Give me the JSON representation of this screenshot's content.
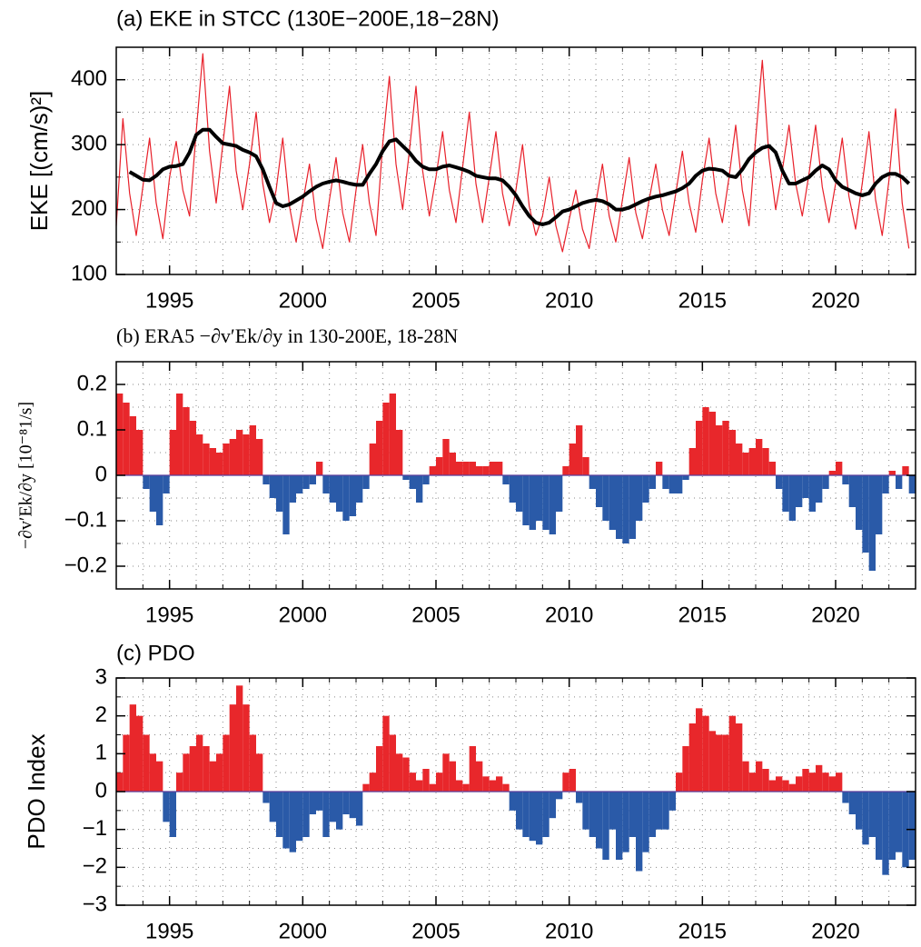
{
  "chart_data": [
    {
      "type": "line",
      "title": "(a) EKE in STCC (130E−200E,18−28N)",
      "ylabel": "EKE [(cm/s)²]",
      "xlim": [
        1993,
        2023
      ],
      "xticks": [
        1995,
        2000,
        2005,
        2010,
        2015,
        2020
      ],
      "xminorticks": [
        1993,
        1994,
        1995,
        1996,
        1997,
        1998,
        1999,
        2000,
        2001,
        2002,
        2003,
        2004,
        2005,
        2006,
        2007,
        2008,
        2009,
        2010,
        2011,
        2012,
        2013,
        2014,
        2015,
        2016,
        2017,
        2018,
        2019,
        2020,
        2021,
        2022,
        2023
      ],
      "ylim": [
        100,
        450
      ],
      "yticks": [
        100,
        200,
        300,
        400
      ],
      "yminorticks": [
        100,
        150,
        200,
        250,
        300,
        350,
        400,
        450
      ],
      "grid": true,
      "x": [
        1993,
        1993.25,
        1993.5,
        1993.75,
        1994,
        1994.25,
        1994.5,
        1994.75,
        1995,
        1995.25,
        1995.5,
        1995.75,
        1996,
        1996.25,
        1996.5,
        1996.75,
        1997,
        1997.25,
        1997.5,
        1997.75,
        1998,
        1998.25,
        1998.5,
        1998.75,
        1999,
        1999.25,
        1999.5,
        1999.75,
        2000,
        2000.25,
        2000.5,
        2000.75,
        2001,
        2001.25,
        2001.5,
        2001.75,
        2002,
        2002.25,
        2002.5,
        2002.75,
        2003,
        2003.25,
        2003.5,
        2003.75,
        2004,
        2004.25,
        2004.5,
        2004.75,
        2005,
        2005.25,
        2005.5,
        2005.75,
        2006,
        2006.25,
        2006.5,
        2006.75,
        2007,
        2007.25,
        2007.5,
        2007.75,
        2008,
        2008.25,
        2008.5,
        2008.75,
        2009,
        2009.25,
        2009.5,
        2009.75,
        2010,
        2010.25,
        2010.5,
        2010.75,
        2011,
        2011.25,
        2011.5,
        2011.75,
        2012,
        2012.25,
        2012.5,
        2012.75,
        2013,
        2013.25,
        2013.5,
        2013.75,
        2014,
        2014.25,
        2014.5,
        2014.75,
        2015,
        2015.25,
        2015.5,
        2015.75,
        2016,
        2016.25,
        2016.5,
        2016.75,
        2017,
        2017.25,
        2017.5,
        2017.75,
        2018,
        2018.25,
        2018.5,
        2018.75,
        2019,
        2019.25,
        2019.5,
        2019.75,
        2020,
        2020.25,
        2020.5,
        2020.75,
        2021,
        2021.25,
        2021.5,
        2021.75,
        2022,
        2022.25,
        2022.5,
        2022.75
      ],
      "series": [
        {
          "color": "#e8202a",
          "width": 1.2,
          "values": [
            175,
            340,
            225,
            160,
            235,
            310,
            210,
            155,
            250,
            305,
            230,
            190,
            320,
            440,
            290,
            210,
            300,
            390,
            260,
            200,
            270,
            350,
            240,
            180,
            230,
            310,
            205,
            150,
            210,
            270,
            185,
            140,
            215,
            280,
            195,
            150,
            230,
            300,
            210,
            160,
            300,
            405,
            270,
            200,
            290,
            390,
            260,
            190,
            250,
            320,
            230,
            180,
            265,
            350,
            240,
            180,
            250,
            320,
            225,
            175,
            230,
            300,
            205,
            160,
            190,
            250,
            175,
            135,
            185,
            230,
            170,
            140,
            210,
            270,
            190,
            150,
            215,
            280,
            195,
            155,
            215,
            270,
            200,
            160,
            225,
            290,
            210,
            165,
            245,
            310,
            225,
            180,
            250,
            330,
            230,
            175,
            310,
            430,
            280,
            200,
            260,
            330,
            240,
            190,
            255,
            330,
            235,
            180,
            240,
            310,
            220,
            170,
            240,
            320,
            215,
            160,
            245,
            355,
            210,
            140
          ]
        },
        {
          "color": "#000000",
          "width": 4,
          "values": [
            null,
            null,
            258,
            252,
            246,
            245,
            252,
            262,
            266,
            267,
            270,
            288,
            315,
            323,
            323,
            312,
            302,
            300,
            298,
            292,
            288,
            282,
            262,
            235,
            210,
            205,
            208,
            214,
            220,
            228,
            235,
            240,
            243,
            245,
            243,
            240,
            238,
            238,
            255,
            270,
            290,
            305,
            308,
            298,
            288,
            275,
            266,
            262,
            262,
            266,
            268,
            265,
            262,
            258,
            252,
            250,
            248,
            248,
            245,
            235,
            222,
            205,
            190,
            180,
            177,
            180,
            188,
            197,
            200,
            205,
            210,
            213,
            215,
            213,
            208,
            200,
            200,
            203,
            208,
            213,
            217,
            220,
            222,
            225,
            228,
            233,
            240,
            252,
            260,
            263,
            262,
            260,
            252,
            250,
            262,
            278,
            288,
            295,
            298,
            288,
            260,
            240,
            240,
            245,
            250,
            260,
            268,
            262,
            245,
            235,
            230,
            225,
            222,
            225,
            240,
            250,
            255,
            255,
            250,
            240
          ]
        }
      ]
    },
    {
      "type": "bar",
      "title": "(b) ERA5 −∂v′Ek/∂y in 130-200E, 18-28N",
      "ylabel": "−∂v′Ek/∂y [10⁻⁸1/s]",
      "xlim": [
        1993,
        2023
      ],
      "xticks": [
        1995,
        2000,
        2005,
        2010,
        2015,
        2020
      ],
      "xminorticks": [
        1993,
        1994,
        1995,
        1996,
        1997,
        1998,
        1999,
        2000,
        2001,
        2002,
        2003,
        2004,
        2005,
        2006,
        2007,
        2008,
        2009,
        2010,
        2011,
        2012,
        2013,
        2014,
        2015,
        2016,
        2017,
        2018,
        2019,
        2020,
        2021,
        2022,
        2023
      ],
      "ylim": [
        -0.25,
        0.25
      ],
      "yticks": [
        {
          "value": -0.2,
          "label": "−0.2"
        },
        {
          "value": -0.1,
          "label": "−0.1"
        },
        0,
        0.1,
        0.2
      ],
      "yminorticks": [
        -0.25,
        -0.2,
        -0.15,
        -0.1,
        -0.05,
        0,
        0.05,
        0.1,
        0.15,
        0.2,
        0.25
      ],
      "grid": true,
      "pos_color": "#e8272b",
      "neg_color": "#2a5aa8",
      "x": [
        1993,
        1993.25,
        1993.5,
        1993.75,
        1994,
        1994.25,
        1994.5,
        1994.75,
        1995,
        1995.25,
        1995.5,
        1995.75,
        1996,
        1996.25,
        1996.5,
        1996.75,
        1997,
        1997.25,
        1997.5,
        1997.75,
        1998,
        1998.25,
        1998.5,
        1998.75,
        1999,
        1999.25,
        1999.5,
        1999.75,
        2000,
        2000.25,
        2000.5,
        2000.75,
        2001,
        2001.25,
        2001.5,
        2001.75,
        2002,
        2002.25,
        2002.5,
        2002.75,
        2003,
        2003.25,
        2003.5,
        2003.75,
        2004,
        2004.25,
        2004.5,
        2004.75,
        2005,
        2005.25,
        2005.5,
        2005.75,
        2006,
        2006.25,
        2006.5,
        2006.75,
        2007,
        2007.25,
        2007.5,
        2007.75,
        2008,
        2008.25,
        2008.5,
        2008.75,
        2009,
        2009.25,
        2009.5,
        2009.75,
        2010,
        2010.25,
        2010.5,
        2010.75,
        2011,
        2011.25,
        2011.5,
        2011.75,
        2012,
        2012.25,
        2012.5,
        2012.75,
        2013,
        2013.25,
        2013.5,
        2013.75,
        2014,
        2014.25,
        2014.5,
        2014.75,
        2015,
        2015.25,
        2015.5,
        2015.75,
        2016,
        2016.25,
        2016.5,
        2016.75,
        2017,
        2017.25,
        2017.5,
        2017.75,
        2018,
        2018.25,
        2018.5,
        2018.75,
        2019,
        2019.25,
        2019.5,
        2019.75,
        2020,
        2020.25,
        2020.5,
        2020.75,
        2021,
        2021.25,
        2021.5,
        2021.75,
        2022,
        2022.25,
        2022.5,
        2022.75
      ],
      "values": [
        0.18,
        0.16,
        0.13,
        0.1,
        -0.03,
        -0.08,
        -0.11,
        -0.04,
        0.1,
        0.18,
        0.15,
        0.12,
        0.09,
        0.07,
        0.06,
        0.05,
        0.07,
        0.08,
        0.1,
        0.09,
        0.11,
        0.08,
        -0.02,
        -0.05,
        -0.08,
        -0.13,
        -0.06,
        -0.04,
        -0.03,
        -0.02,
        0.03,
        -0.04,
        -0.06,
        -0.08,
        -0.1,
        -0.09,
        -0.06,
        -0.03,
        0.07,
        0.12,
        0.16,
        0.18,
        0.1,
        -0.01,
        -0.03,
        -0.06,
        -0.02,
        0.02,
        0.04,
        0.08,
        0.05,
        0.03,
        0.03,
        0.03,
        0.02,
        0.02,
        0.03,
        0.03,
        -0.02,
        -0.06,
        -0.08,
        -0.11,
        -0.12,
        -0.1,
        -0.12,
        -0.13,
        -0.08,
        0.02,
        0.07,
        0.11,
        0.04,
        -0.03,
        -0.07,
        -0.1,
        -0.12,
        -0.14,
        -0.15,
        -0.14,
        -0.1,
        -0.06,
        -0.03,
        0.03,
        -0.03,
        -0.04,
        -0.04,
        -0.01,
        0.06,
        0.12,
        0.15,
        0.14,
        0.11,
        0.12,
        0.1,
        0.07,
        0.05,
        0.06,
        0.08,
        0.06,
        0.03,
        -0.03,
        -0.08,
        -0.1,
        -0.07,
        -0.05,
        -0.08,
        -0.06,
        -0.03,
        0.01,
        0.03,
        -0.02,
        -0.07,
        -0.12,
        -0.17,
        -0.21,
        -0.13,
        -0.04,
        0.01,
        -0.03,
        0.02,
        -0.04
      ]
    },
    {
      "type": "bar",
      "title": "(c) PDO",
      "ylabel": "PDO Index",
      "xlim": [
        1993,
        2023
      ],
      "xticks": [
        1995,
        2000,
        2005,
        2010,
        2015,
        2020
      ],
      "xminorticks": [
        1993,
        1994,
        1995,
        1996,
        1997,
        1998,
        1999,
        2000,
        2001,
        2002,
        2003,
        2004,
        2005,
        2006,
        2007,
        2008,
        2009,
        2010,
        2011,
        2012,
        2013,
        2014,
        2015,
        2016,
        2017,
        2018,
        2019,
        2020,
        2021,
        2022,
        2023
      ],
      "ylim": [
        -3,
        3
      ],
      "yticks": [
        {
          "value": -3,
          "label": "−3"
        },
        {
          "value": -2,
          "label": "−2"
        },
        {
          "value": -1,
          "label": "−1"
        },
        0,
        1,
        2,
        3
      ],
      "yminorticks": [
        -3,
        -2.5,
        -2,
        -1.5,
        -1,
        -0.5,
        0,
        0.5,
        1,
        1.5,
        2,
        2.5,
        3
      ],
      "grid": true,
      "pos_color": "#e8272b",
      "neg_color": "#2a5aa8",
      "x": [
        1993,
        1993.25,
        1993.5,
        1993.75,
        1994,
        1994.25,
        1994.5,
        1994.75,
        1995,
        1995.25,
        1995.5,
        1995.75,
        1996,
        1996.25,
        1996.5,
        1996.75,
        1997,
        1997.25,
        1997.5,
        1997.75,
        1998,
        1998.25,
        1998.5,
        1998.75,
        1999,
        1999.25,
        1999.5,
        1999.75,
        2000,
        2000.25,
        2000.5,
        2000.75,
        2001,
        2001.25,
        2001.5,
        2001.75,
        2002,
        2002.25,
        2002.5,
        2002.75,
        2003,
        2003.25,
        2003.5,
        2003.75,
        2004,
        2004.25,
        2004.5,
        2004.75,
        2005,
        2005.25,
        2005.5,
        2005.75,
        2006,
        2006.25,
        2006.5,
        2006.75,
        2007,
        2007.25,
        2007.5,
        2007.75,
        2008,
        2008.25,
        2008.5,
        2008.75,
        2009,
        2009.25,
        2009.5,
        2009.75,
        2010,
        2010.25,
        2010.5,
        2010.75,
        2011,
        2011.25,
        2011.5,
        2011.75,
        2012,
        2012.25,
        2012.5,
        2012.75,
        2013,
        2013.25,
        2013.5,
        2013.75,
        2014,
        2014.25,
        2014.5,
        2014.75,
        2015,
        2015.25,
        2015.5,
        2015.75,
        2016,
        2016.25,
        2016.5,
        2016.75,
        2017,
        2017.25,
        2017.5,
        2017.75,
        2018,
        2018.25,
        2018.5,
        2018.75,
        2019,
        2019.25,
        2019.5,
        2019.75,
        2020,
        2020.25,
        2020.5,
        2020.75,
        2021,
        2021.25,
        2021.5,
        2021.75,
        2022,
        2022.25,
        2022.5,
        2022.75
      ],
      "values": [
        0.5,
        1.5,
        2.3,
        2.0,
        1.5,
        1.0,
        0.8,
        -0.8,
        -1.2,
        0.5,
        1.0,
        1.2,
        1.5,
        1.2,
        0.8,
        1.0,
        1.5,
        2.3,
        2.8,
        2.3,
        1.5,
        1.0,
        -0.3,
        -0.8,
        -1.2,
        -1.5,
        -1.6,
        -1.3,
        -1.2,
        -0.6,
        -0.5,
        -1.2,
        -0.8,
        -1.0,
        -0.6,
        -0.7,
        -0.9,
        0.2,
        0.5,
        1.2,
        2.0,
        1.5,
        1.0,
        0.9,
        0.5,
        0.3,
        0.6,
        0.2,
        0.5,
        1.0,
        0.8,
        0.3,
        0.2,
        1.2,
        0.8,
        0.4,
        0.3,
        0.4,
        0.2,
        -0.5,
        -1.0,
        -1.2,
        -1.3,
        -1.4,
        -1.2,
        -0.7,
        -0.2,
        0.5,
        0.6,
        -0.3,
        -1.0,
        -1.2,
        -1.5,
        -1.8,
        -1.0,
        -1.8,
        -1.6,
        -1.2,
        -2.1,
        -1.6,
        -1.2,
        -1.0,
        -1.0,
        -0.5,
        0.5,
        1.2,
        1.8,
        2.2,
        2.0,
        1.6,
        1.5,
        1.5,
        2.0,
        1.8,
        0.8,
        0.5,
        0.8,
        0.6,
        0.3,
        0.4,
        0.3,
        0.2,
        0.4,
        0.6,
        0.5,
        0.7,
        0.5,
        0.4,
        0.5,
        -0.3,
        -0.6,
        -1.0,
        -1.4,
        -1.2,
        -1.8,
        -2.2,
        -1.8,
        -1.6,
        -2.0,
        -1.8
      ]
    }
  ]
}
